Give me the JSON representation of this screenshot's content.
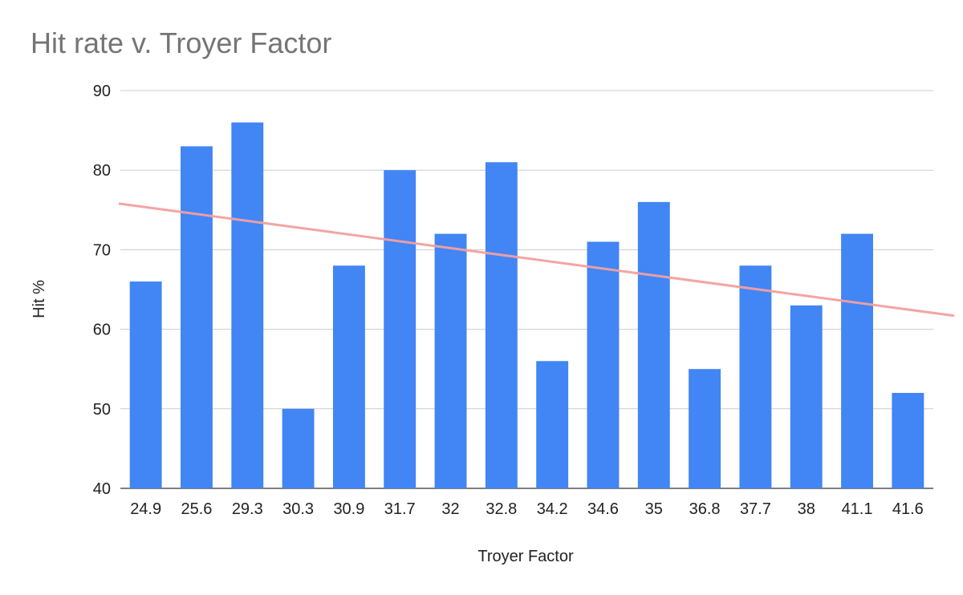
{
  "chart_data": {
    "type": "bar",
    "title": "Hit rate v. Troyer Factor",
    "xlabel": "Troyer Factor",
    "ylabel": "Hit %",
    "categories": [
      "24.9",
      "25.6",
      "29.3",
      "30.3",
      "30.9",
      "31.7",
      "32",
      "32.8",
      "34.2",
      "34.6",
      "35",
      "36.8",
      "37.7",
      "38",
      "41.1",
      "41.6"
    ],
    "series": [
      {
        "values": [
          66,
          83,
          86,
          50,
          68,
          80,
          72,
          81,
          56,
          71,
          76,
          55,
          68,
          63,
          72,
          52
        ],
        "color": "#4285f4"
      }
    ],
    "trendline": {
      "type": "linear",
      "start": 75.8,
      "end": 61.7,
      "color": "#f4a0a0"
    },
    "ylim": [
      40,
      90
    ],
    "yticks": [
      40,
      50,
      60,
      70,
      80,
      90
    ],
    "grid": true,
    "legend": "none"
  }
}
